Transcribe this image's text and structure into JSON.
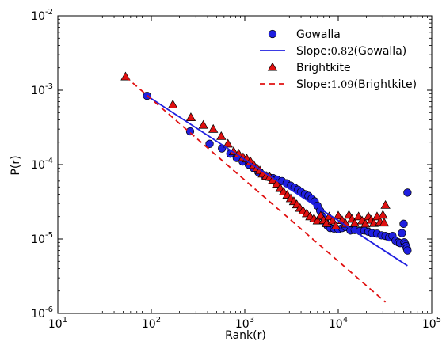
{
  "chart_data": {
    "type": "scatter",
    "xscale": "log",
    "yscale": "log",
    "xlim": [
      10,
      100000
    ],
    "ylim": [
      1e-06,
      0.01
    ],
    "xlabel": "Rank(r)",
    "ylabel": "P(r)",
    "x_ticks": [
      {
        "value": 10,
        "base": "10",
        "exp": "1"
      },
      {
        "value": 100,
        "base": "10",
        "exp": "2"
      },
      {
        "value": 1000,
        "base": "10",
        "exp": "3"
      },
      {
        "value": 10000,
        "base": "10",
        "exp": "4"
      },
      {
        "value": 100000,
        "base": "10",
        "exp": "5"
      }
    ],
    "y_ticks": [
      {
        "value": 1e-06,
        "base": "10",
        "exp": "-6"
      },
      {
        "value": 1e-05,
        "base": "10",
        "exp": "-5"
      },
      {
        "value": 0.0001,
        "base": "10",
        "exp": "-4"
      },
      {
        "value": 0.001,
        "base": "10",
        "exp": "-3"
      },
      {
        "value": 0.01,
        "base": "10",
        "exp": "-2"
      }
    ],
    "legend": {
      "position": "top-right",
      "entries": [
        {
          "label": "Gowalla",
          "kind": "marker-circle",
          "color": "#1f1fe0"
        },
        {
          "label_prefix": "Slope:",
          "label_value": "0.82",
          "label_suffix": "(Gowalla)",
          "kind": "solid-line",
          "color": "#1f1fe0"
        },
        {
          "label": "Brightkite",
          "kind": "marker-triangle",
          "color": "#e01010"
        },
        {
          "label_prefix": "Slope:",
          "label_value": "1.09",
          "label_suffix": "(Brightkite)",
          "kind": "dashed-line",
          "color": "#e01010"
        }
      ]
    },
    "series": [
      {
        "name": "Gowalla",
        "marker": "circle",
        "color": "#1f1fe0",
        "points": [
          [
            90,
            0.00084
          ],
          [
            260,
            0.00028
          ],
          [
            420,
            0.00019
          ],
          [
            570,
            0.000165
          ],
          [
            700,
            0.00014
          ],
          [
            820,
            0.000123
          ],
          [
            950,
            0.00011
          ],
          [
            1100,
            0.0001
          ],
          [
            1250,
            8.9e-05
          ],
          [
            1400,
            7.9e-05
          ],
          [
            1600,
            7.2e-05
          ],
          [
            1800,
            6.8e-05
          ],
          [
            2000,
            6.6e-05
          ],
          [
            2200,
            6.3e-05
          ],
          [
            2500,
            6e-05
          ],
          [
            2800,
            5.6e-05
          ],
          [
            3100,
            5.2e-05
          ],
          [
            3400,
            4.9e-05
          ],
          [
            3700,
            4.6e-05
          ],
          [
            4000,
            4.3e-05
          ],
          [
            4400,
            4e-05
          ],
          [
            4800,
            3.8e-05
          ],
          [
            5200,
            3.5e-05
          ],
          [
            5600,
            3.2e-05
          ],
          [
            6000,
            2.8e-05
          ],
          [
            6400,
            2.4e-05
          ],
          [
            6800,
            2e-05
          ],
          [
            7200,
            1.7e-05
          ],
          [
            7700,
            1.5e-05
          ],
          [
            8200,
            1.4e-05
          ],
          [
            9000,
            1.38e-05
          ],
          [
            10000,
            1.35e-05
          ],
          [
            11000,
            1.4e-05
          ],
          [
            12000,
            1.45e-05
          ],
          [
            13500,
            1.3e-05
          ],
          [
            15000,
            1.32e-05
          ],
          [
            17000,
            1.28e-05
          ],
          [
            19000,
            1.3e-05
          ],
          [
            21000,
            1.25e-05
          ],
          [
            23000,
            1.2e-05
          ],
          [
            26000,
            1.18e-05
          ],
          [
            29000,
            1.12e-05
          ],
          [
            32000,
            1.1e-05
          ],
          [
            35000,
            1.05e-05
          ],
          [
            38000,
            1.1e-05
          ],
          [
            41000,
            9.5e-06
          ],
          [
            44000,
            9e-06
          ],
          [
            46000,
            8.8e-06
          ],
          [
            48000,
            1.2e-05
          ],
          [
            50000,
            1.6e-05
          ],
          [
            51000,
            9e-06
          ],
          [
            52000,
            8.5e-06
          ],
          [
            53000,
            8e-06
          ],
          [
            54000,
            7.5e-06
          ],
          [
            55000,
            7e-06
          ],
          [
            55000,
            4.2e-05
          ]
        ]
      },
      {
        "name": "Brightkite",
        "marker": "triangle",
        "color": "#e01010",
        "points": [
          [
            53,
            0.00152
          ],
          [
            170,
            0.00064
          ],
          [
            265,
            0.00043
          ],
          [
            360,
            0.00034
          ],
          [
            460,
            0.0003
          ],
          [
            560,
            0.00024
          ],
          [
            660,
            0.00019
          ],
          [
            760,
            0.00015
          ],
          [
            860,
            0.00014
          ],
          [
            960,
            0.000125
          ],
          [
            1050,
            0.00012
          ],
          [
            1150,
            0.00011
          ],
          [
            1250,
            9.8e-05
          ],
          [
            1350,
            9e-05
          ],
          [
            1450,
            8.3e-05
          ],
          [
            1550,
            7.5e-05
          ],
          [
            1700,
            7e-05
          ],
          [
            1850,
            6.8e-05
          ],
          [
            2000,
            6.2e-05
          ],
          [
            2200,
            5.5e-05
          ],
          [
            2400,
            4.8e-05
          ],
          [
            2600,
            4.3e-05
          ],
          [
            2850,
            3.9e-05
          ],
          [
            3100,
            3.5e-05
          ],
          [
            3350,
            3.2e-05
          ],
          [
            3600,
            2.9e-05
          ],
          [
            3900,
            2.6e-05
          ],
          [
            4200,
            2.4e-05
          ],
          [
            4600,
            2.2e-05
          ],
          [
            5000,
            2e-05
          ],
          [
            5500,
            1.88e-05
          ],
          [
            6000,
            1.76e-05
          ],
          [
            6500,
            2.05e-05
          ],
          [
            7000,
            1.78e-05
          ],
          [
            7500,
            1.62e-05
          ],
          [
            8000,
            2e-05
          ],
          [
            8700,
            1.76e-05
          ],
          [
            9400,
            1.5e-05
          ],
          [
            10000,
            2.05e-05
          ],
          [
            11000,
            1.78e-05
          ],
          [
            12000,
            1.6e-05
          ],
          [
            13000,
            2.1e-05
          ],
          [
            14000,
            1.85e-05
          ],
          [
            15000,
            1.63e-05
          ],
          [
            16500,
            2e-05
          ],
          [
            18000,
            1.76e-05
          ],
          [
            19500,
            1.6e-05
          ],
          [
            21000,
            2e-05
          ],
          [
            22500,
            1.8e-05
          ],
          [
            24000,
            1.63e-05
          ],
          [
            26000,
            2e-05
          ],
          [
            28000,
            1.7e-05
          ],
          [
            30000,
            2.1e-05
          ],
          [
            31000,
            1.65e-05
          ],
          [
            32000,
            2.85e-05
          ]
        ]
      }
    ],
    "fits": [
      {
        "name": "Slope:0.82(Gowalla)",
        "style": "solid",
        "color": "#1f1fe0",
        "slope": -0.82,
        "x_start": 90,
        "x_end": 55000
      },
      {
        "name": "Slope:1.09(Brightkite)",
        "style": "dashed",
        "color": "#e01010",
        "slope": -1.09,
        "x_start": 53,
        "x_end": 32000
      }
    ]
  }
}
